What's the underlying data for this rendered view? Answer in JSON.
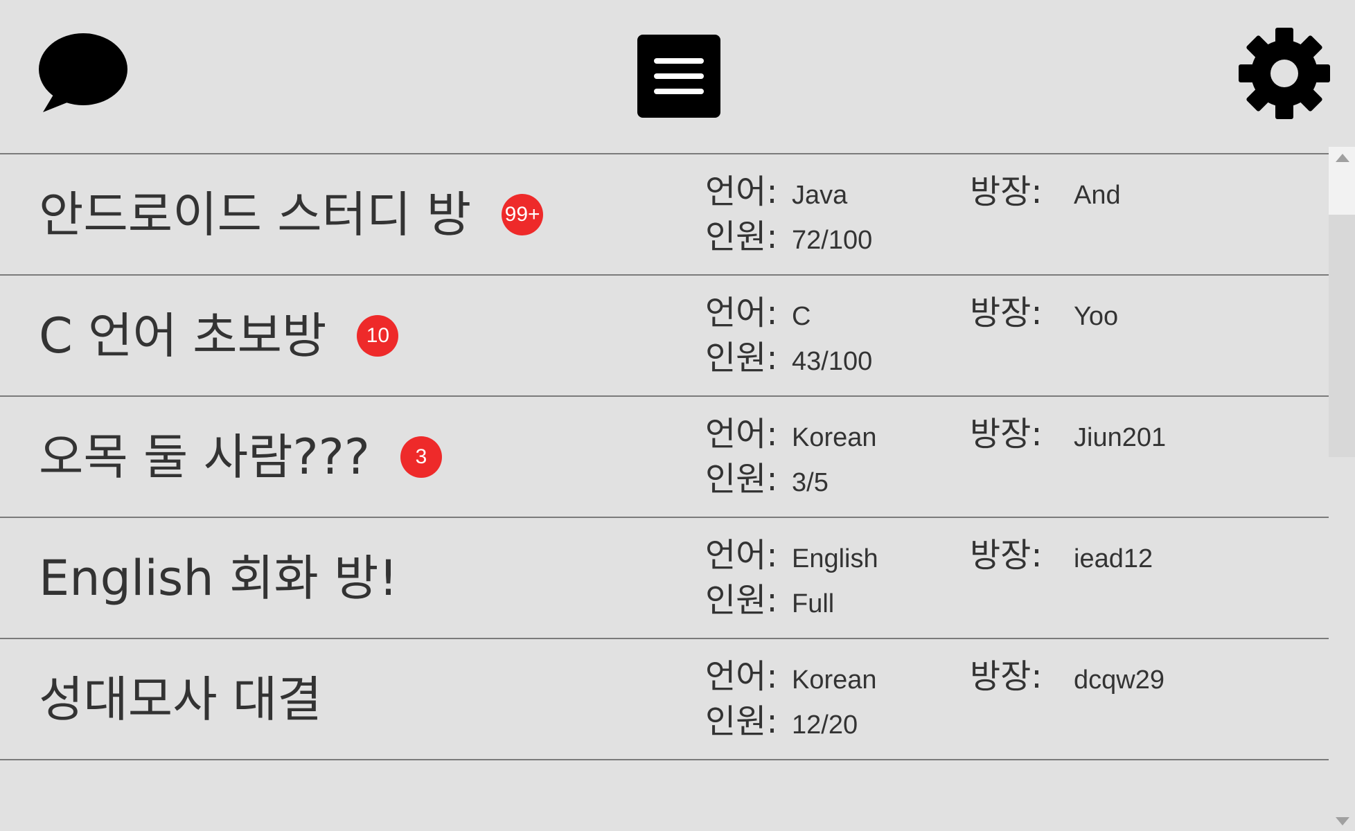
{
  "header": {
    "chat_icon": "speech-bubble-icon",
    "menu_icon": "hamburger-menu-icon",
    "settings_icon": "gear-icon"
  },
  "labels": {
    "language": "언어:",
    "members": "인원:",
    "owner": "방장:"
  },
  "rooms": [
    {
      "title": "안드로이드 스터디 방",
      "badge": "99+",
      "language": "Java",
      "members": "72/100",
      "owner": "And"
    },
    {
      "title": "C 언어 초보방",
      "badge": "10",
      "language": "C",
      "members": "43/100",
      "owner": "Yoo"
    },
    {
      "title": "오목 둘 사람???",
      "badge": "3",
      "language": "Korean",
      "members": "3/5",
      "owner": "Jiun201"
    },
    {
      "title": "English 회화 방!",
      "badge": "",
      "language": "English",
      "members": "Full",
      "owner": "iead12"
    },
    {
      "title": "성대모사 대결",
      "badge": "",
      "language": "Korean",
      "members": "12/20",
      "owner": "dcqw29"
    }
  ],
  "colors": {
    "background": "#e1e1e1",
    "badge": "#ee2a2a",
    "divider": "#7a7a7a",
    "text": "#333333"
  }
}
